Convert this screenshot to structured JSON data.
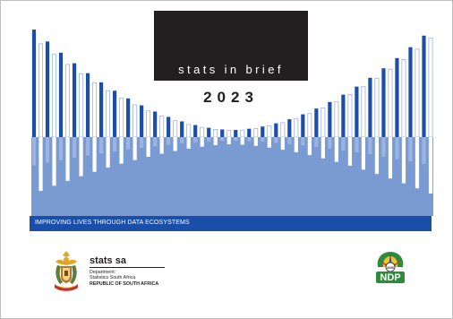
{
  "cover": {
    "title": "stats in brief",
    "year": "2023",
    "tagline": "IMPROVING LIVES THROUGH DATA ECOSYSTEMS"
  },
  "publisher": {
    "name": "stats sa",
    "dept_line1": "Department:",
    "dept_line2": "Statistics South Africa",
    "dept_line3": "REPUBLIC OF SOUTH AFRICA"
  },
  "ndp_logo": {
    "year": "2030",
    "text": "NDP"
  },
  "colors": {
    "title_box": "#231f20",
    "band": "#1b4ea8",
    "bar_dark": "#1b4ea8",
    "bar_light": "#7a9ad2",
    "bar_outline": "#9fb3dc"
  }
}
